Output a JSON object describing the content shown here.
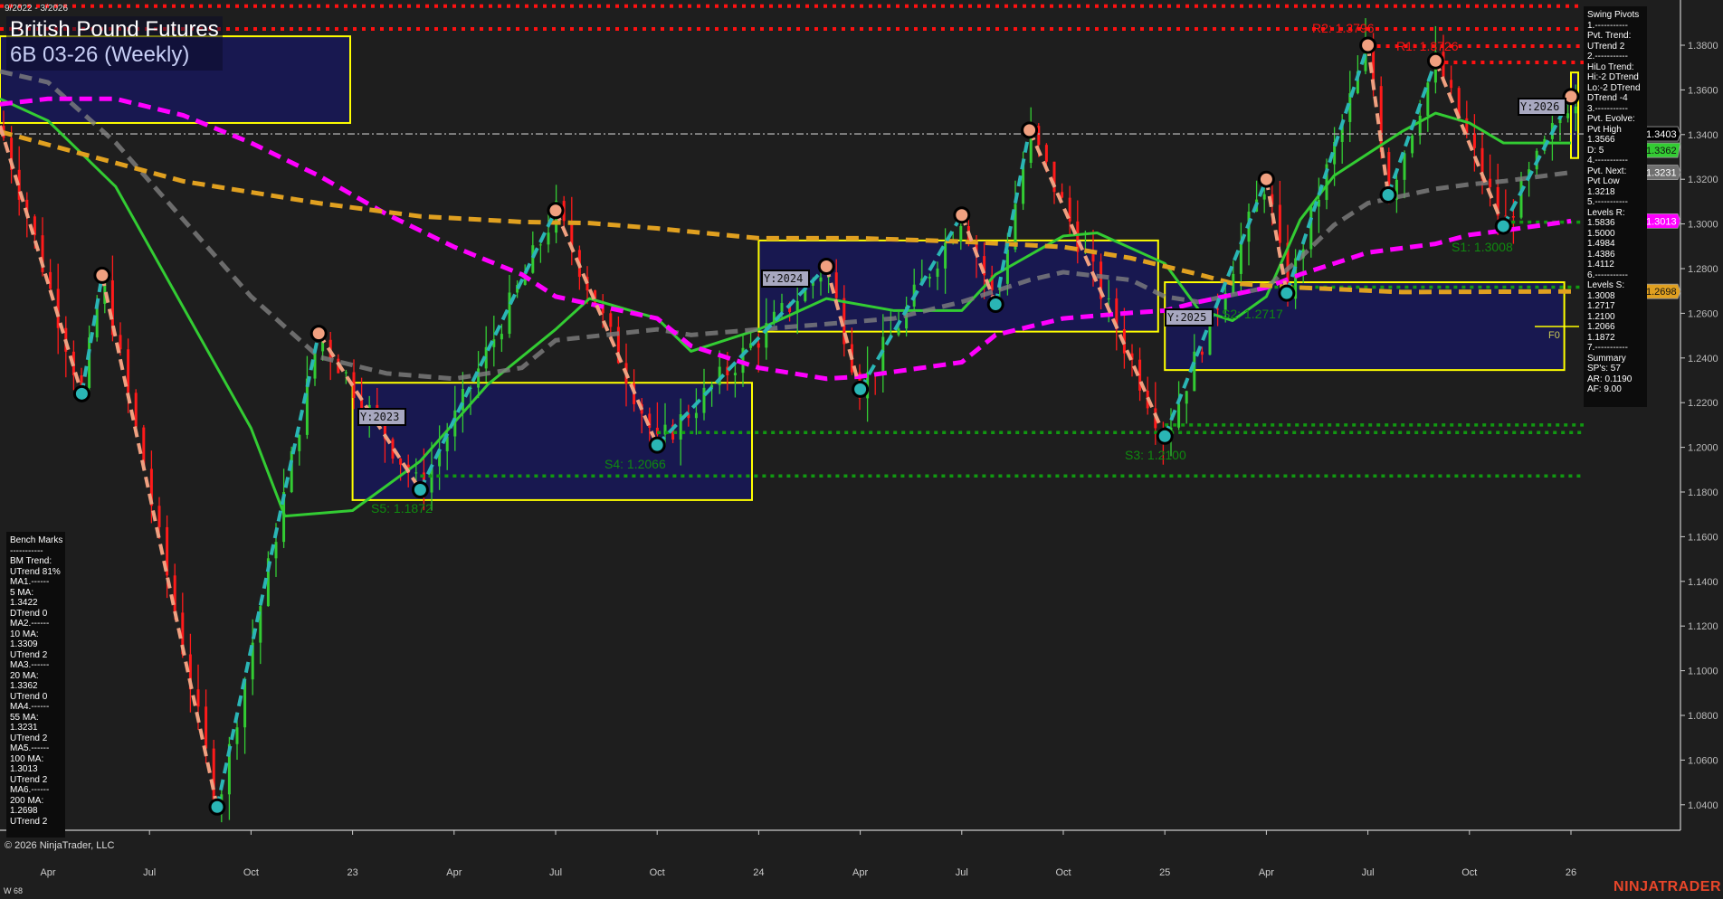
{
  "header": {
    "date_range": "9/2022 - 3/2026",
    "title": "British Pound Futures",
    "subtitle": "6B 03-26 (Weekly)"
  },
  "footer": {
    "copyright": "© 2026 NinjaTrader, LLC",
    "bar_info": "W 68",
    "logo": "NINJATRADER"
  },
  "info_panel": {
    "lines": [
      "Swing Pivots",
      "1.-----------",
      "Pvt. Trend:",
      "UTrend 2",
      "2.-----------",
      "HiLo Trend:",
      "Hi:-2 DTrend",
      "Lo:-2 DTrend",
      "DTrend -4",
      "3.-----------",
      "Pvt. Evolve:",
      "Pvt High",
      "1.3566",
      "D: 5",
      "4.-----------",
      "Pvt. Next:",
      "Pvt Low",
      "1.3218",
      "5.-----------",
      "Levels R:",
      "1.5836",
      "1.5000",
      "1.4984",
      "1.4386",
      "1.4112",
      "6.-----------",
      "Levels S:",
      "1.3008",
      "1.2717",
      "1.2100",
      "1.2066",
      "1.1872",
      "7.-----------",
      "Summary",
      "SP's: 57",
      "AR: 0.1190",
      "AF: 9.00"
    ]
  },
  "bench_marks": {
    "lines": [
      "Bench Marks",
      "-----------",
      "BM Trend:",
      "UTrend 81%",
      "MA1.------",
      "5 MA:",
      "1.3422",
      "DTrend 0",
      "MA2.------",
      "10 MA:",
      "1.3309",
      "UTrend 2",
      "MA3.------",
      "20 MA:",
      "1.3362",
      "UTrend 0",
      "MA4.------",
      "55 MA:",
      "1.3231",
      "UTrend 2",
      "MA5.------",
      "100 MA:",
      "1.3013",
      "UTrend 2",
      "MA6.------",
      "200 MA:",
      "1.2698",
      "UTrend 2"
    ]
  },
  "chart_data": {
    "type": "candlestick",
    "yaxis": {
      "range": [
        1.03,
        1.4
      ],
      "ticks": [
        "1.0400",
        "1.0600",
        "1.0800",
        "1.1000",
        "1.1200",
        "1.1400",
        "1.1600",
        "1.1800",
        "1.2000",
        "1.2200",
        "1.2400",
        "1.2600",
        "1.2800",
        "1.3000",
        "1.3200",
        "1.3400",
        "1.3600",
        "1.3800"
      ]
    },
    "xaxis": {
      "ticks": [
        {
          "label": "Apr",
          "date": "2022-04"
        },
        {
          "label": "Jul",
          "date": "2022-07"
        },
        {
          "label": "Oct",
          "date": "2022-10"
        },
        {
          "label": "23",
          "date": "2023-01"
        },
        {
          "label": "Apr",
          "date": "2023-04"
        },
        {
          "label": "Jul",
          "date": "2023-07"
        },
        {
          "label": "Oct",
          "date": "2023-10"
        },
        {
          "label": "24",
          "date": "2024-01"
        },
        {
          "label": "Apr",
          "date": "2024-04"
        },
        {
          "label": "Jul",
          "date": "2024-07"
        },
        {
          "label": "Oct",
          "date": "2024-10"
        },
        {
          "label": "25",
          "date": "2025-01"
        },
        {
          "label": "Apr",
          "date": "2025-04"
        },
        {
          "label": "Jul",
          "date": "2025-07"
        },
        {
          "label": "Oct",
          "date": "2025-10"
        },
        {
          "label": "26",
          "date": "2026-01"
        }
      ]
    },
    "swing_pivots": [
      {
        "date": "2022-02",
        "price": 1.344
      },
      {
        "date": "2022-05",
        "price": 1.224
      },
      {
        "date": "2022-05b",
        "price": 1.277
      },
      {
        "date": "2022-09",
        "price": 1.039
      },
      {
        "date": "2022-12",
        "price": 1.251
      },
      {
        "date": "2023-03",
        "price": 1.181
      },
      {
        "date": "2023-07",
        "price": 1.306
      },
      {
        "date": "2023-10",
        "price": 1.201
      },
      {
        "date": "2024-03",
        "price": 1.281
      },
      {
        "date": "2024-04",
        "price": 1.226
      },
      {
        "date": "2024-07",
        "price": 1.304
      },
      {
        "date": "2024-08",
        "price": 1.264
      },
      {
        "date": "2024-09",
        "price": 1.342
      },
      {
        "date": "2025-01",
        "price": 1.205
      },
      {
        "date": "2025-04",
        "price": 1.32
      },
      {
        "date": "2025-04b",
        "price": 1.269
      },
      {
        "date": "2025-07",
        "price": 1.38
      },
      {
        "date": "2025-07b",
        "price": 1.313
      },
      {
        "date": "2025-09",
        "price": 1.373
      },
      {
        "date": "2025-11",
        "price": 1.299
      },
      {
        "date": "2026-01",
        "price": 1.357
      }
    ],
    "moving_averages": [
      {
        "name": "20 MA",
        "color": "#33cc33",
        "style": "solid",
        "points": [
          [
            "2022-02",
            1.356
          ],
          [
            "2022-04",
            1.3462
          ],
          [
            "2022-06",
            1.3167
          ],
          [
            "2022-08",
            1.2626
          ],
          [
            "2022-10",
            1.2086
          ],
          [
            "2022-11",
            1.1692
          ],
          [
            "2023-01",
            1.1717
          ],
          [
            "2023-03",
            1.1938
          ],
          [
            "2023-05",
            1.2282
          ],
          [
            "2023-07",
            1.2528
          ],
          [
            "2023-08",
            1.2666
          ],
          [
            "2023-10",
            1.2577
          ],
          [
            "2023-11",
            1.243
          ],
          [
            "2024-01",
            1.2528
          ],
          [
            "2024-03",
            1.2666
          ],
          [
            "2024-05",
            1.2612
          ],
          [
            "2024-07",
            1.2612
          ],
          [
            "2024-08",
            1.2774
          ],
          [
            "2024-10",
            1.2946
          ],
          [
            "2024-11",
            1.296
          ],
          [
            "2025-01",
            1.2823
          ],
          [
            "2025-02",
            1.2617
          ],
          [
            "2025-03",
            1.2567
          ],
          [
            "2025-04",
            1.2675
          ],
          [
            "2025-05",
            1.3019
          ],
          [
            "2025-06",
            1.3216
          ],
          [
            "2025-08",
            1.3413
          ],
          [
            "2025-09",
            1.3496
          ],
          [
            "2025-10",
            1.3452
          ],
          [
            "2025-11",
            1.3363
          ],
          [
            "2026-01",
            1.3362
          ]
        ]
      },
      {
        "name": "55 MA",
        "color": "#808080",
        "style": "dashed",
        "points": [
          [
            "2022-02",
            1.3683
          ],
          [
            "2022-04",
            1.3634
          ],
          [
            "2022-06",
            1.3364
          ],
          [
            "2022-08",
            1.3019
          ],
          [
            "2022-10",
            1.2675
          ],
          [
            "2022-12",
            1.2405
          ],
          [
            "2023-02",
            1.2331
          ],
          [
            "2023-04",
            1.2307
          ],
          [
            "2023-06",
            1.2356
          ],
          [
            "2023-07",
            1.2479
          ],
          [
            "2023-10",
            1.2528
          ],
          [
            "2023-11",
            1.2503
          ],
          [
            "2024-01",
            1.2528
          ],
          [
            "2024-03",
            1.2552
          ],
          [
            "2024-05",
            1.2577
          ],
          [
            "2024-07",
            1.2651
          ],
          [
            "2024-09",
            1.2749
          ],
          [
            "2024-10",
            1.2784
          ],
          [
            "2024-12",
            1.2749
          ],
          [
            "2025-01",
            1.2675
          ],
          [
            "2025-02",
            1.2651
          ],
          [
            "2025-04",
            1.2715
          ],
          [
            "2025-05",
            1.2848
          ],
          [
            "2025-06",
            1.2995
          ],
          [
            "2025-07",
            1.3093
          ],
          [
            "2025-09",
            1.3157
          ],
          [
            "2025-10",
            1.3177
          ],
          [
            "2025-11",
            1.3191
          ],
          [
            "2026-01",
            1.3231
          ]
        ]
      },
      {
        "name": "100 MA",
        "color": "#ff00ff",
        "style": "dashed",
        "points": [
          [
            "2022-02",
            1.3536
          ],
          [
            "2022-04",
            1.356
          ],
          [
            "2022-06",
            1.356
          ],
          [
            "2022-08",
            1.3486
          ],
          [
            "2022-10",
            1.3363
          ],
          [
            "2022-12",
            1.3216
          ],
          [
            "2023-02",
            1.3044
          ],
          [
            "2023-04",
            1.2897
          ],
          [
            "2023-06",
            1.2774
          ],
          [
            "2023-07",
            1.2675
          ],
          [
            "2023-10",
            1.2577
          ],
          [
            "2023-11",
            1.2454
          ],
          [
            "2024-01",
            1.2356
          ],
          [
            "2024-03",
            1.2307
          ],
          [
            "2024-04",
            1.2317
          ],
          [
            "2024-07",
            1.2381
          ],
          [
            "2024-08",
            1.2503
          ],
          [
            "2024-10",
            1.2577
          ],
          [
            "2024-12",
            1.2602
          ],
          [
            "2025-01",
            1.2612
          ],
          [
            "2025-02",
            1.2651
          ],
          [
            "2025-04",
            1.2715
          ],
          [
            "2025-05",
            1.2774
          ],
          [
            "2025-06",
            1.2823
          ],
          [
            "2025-07",
            1.2872
          ],
          [
            "2025-09",
            1.2911
          ],
          [
            "2025-10",
            1.2951
          ],
          [
            "2025-11",
            1.297
          ],
          [
            "2026-01",
            1.3013
          ]
        ]
      },
      {
        "name": "200 MA",
        "color": "#e0a020",
        "style": "dashed",
        "points": [
          [
            "2022-02",
            1.3413
          ],
          [
            "2022-05",
            1.3314
          ],
          [
            "2022-08",
            1.3191
          ],
          [
            "2022-12",
            1.3093
          ],
          [
            "2023-03",
            1.3034
          ],
          [
            "2023-06",
            1.3009
          ],
          [
            "2023-08",
            1.3004
          ],
          [
            "2023-10",
            1.298
          ],
          [
            "2024-01",
            1.2936
          ],
          [
            "2024-04",
            1.2936
          ],
          [
            "2024-07",
            1.2921
          ],
          [
            "2024-10",
            1.2897
          ],
          [
            "2024-12",
            1.2847
          ],
          [
            "2025-02",
            1.2774
          ],
          [
            "2025-03",
            1.2734
          ],
          [
            "2025-05",
            1.2715
          ],
          [
            "2025-08",
            1.2695
          ],
          [
            "2026-01",
            1.2698
          ]
        ]
      }
    ],
    "year_boxes": [
      {
        "label": "",
        "from": "2022-01",
        "to": "2022-12",
        "high": 1.384,
        "low": 1.3452
      },
      {
        "label": "Y:2023",
        "from": "2023-01",
        "to": "2023-12",
        "high": 1.2289,
        "low": 1.1764
      },
      {
        "label": "Y:2024",
        "from": "2024-01",
        "to": "2024-12",
        "high": 1.2926,
        "low": 1.2518
      },
      {
        "label": "Y:2025",
        "from": "2025-01",
        "to": "2025-12",
        "high": 1.2739,
        "low": 1.2346
      },
      {
        "label": "Y:2026",
        "from": "2026-01",
        "to": "2026-01",
        "high": 1.3678,
        "low": 1.3295
      }
    ],
    "resistance_lines": [
      {
        "label": "",
        "price": 1.3975,
        "from": "2022-01"
      },
      {
        "label": "R2: 1.3796",
        "price": 1.3873,
        "from": "2022-01"
      },
      {
        "label": "R1: 1.3726",
        "price": 1.3796,
        "from": "2025-07"
      },
      {
        "label": "",
        "price": 1.3723,
        "from": "2025-09"
      }
    ],
    "support_lines": [
      {
        "label": "S1: 1.3008",
        "price": 1.3008,
        "from": "2025-11"
      },
      {
        "label": "S2: 1.2717",
        "price": 1.2717,
        "from": "2025-04"
      },
      {
        "label": "",
        "price": 1.21,
        "from": "2025-01"
      },
      {
        "label": "S3: 1.2100",
        "price": 1.2066,
        "from": "2023-10"
      },
      {
        "label": "S4: 1.2066",
        "price": 1.2066,
        "from": "2023-10",
        "hidden_line": true
      },
      {
        "label": "S5: 1.1872",
        "price": 1.1872,
        "from": "2023-03"
      }
    ],
    "fib_label": "F0",
    "last_price": 1.3403,
    "price_tags": [
      {
        "value": "1.3403",
        "bg": "#000000",
        "fg": "#ffffff"
      },
      {
        "value": "1.3362",
        "bg": "#33cc33",
        "fg": "#111111"
      },
      {
        "value": "1.3231",
        "bg": "#707070",
        "fg": "#ffffff"
      },
      {
        "value": "1.3013",
        "bg": "#ff00ff",
        "fg": "#ffffff"
      },
      {
        "value": "1.2698",
        "bg": "#e0a020",
        "fg": "#111111"
      }
    ],
    "colors": {
      "up": "#33cc33",
      "down": "#ff1a1a",
      "leg_up": "#2ab5b5",
      "leg_down": "#f0a080",
      "box_fill": "#181850",
      "box_stroke": "#ffff00",
      "support": "#119911",
      "resistance": "#ff1111"
    }
  }
}
